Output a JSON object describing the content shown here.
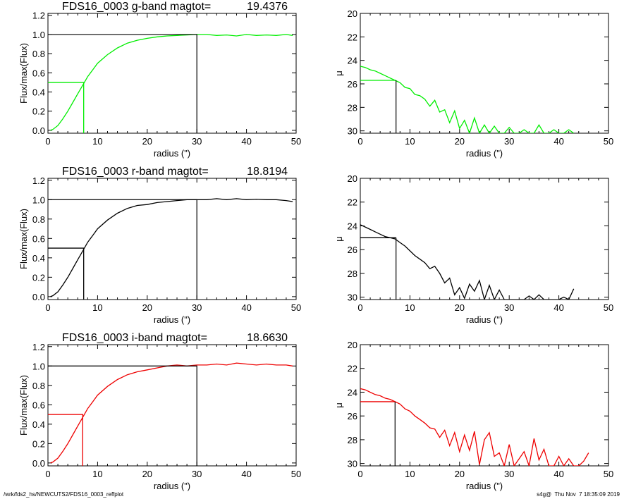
{
  "footer": {
    "path": "/wrk/fds2_hs/NEWCUTS2/FDS16_0003_reffplot",
    "stamp": "s4g@  Thu Nov  7 18:35:09 2019"
  },
  "colors": {
    "g": "#00ee00",
    "r": "#000000",
    "i": "#ee0000",
    "frame": "#000000"
  },
  "chart_data": [
    {
      "type": "line",
      "panel": "g-growth-curve",
      "title": "FDS16_0003 g-band  magtot=",
      "title_value": "19.4376",
      "xlabel": "radius (\")",
      "ylabel": "Flux/max(Flux)",
      "xlim": [
        0,
        50
      ],
      "ylim": [
        -0.03,
        1.22
      ],
      "xticks": [
        0,
        10,
        20,
        30,
        40,
        50
      ],
      "yticks": [
        0.0,
        0.2,
        0.4,
        0.6,
        0.8,
        1.0,
        1.2
      ],
      "ytick_labels": [
        "0.0",
        "0.2",
        "0.4",
        "0.6",
        "0.8",
        "1.0",
        "1.2"
      ],
      "series": [
        {
          "color": "#00ee00",
          "x": [
            0.5,
            1,
            2,
            3,
            4,
            5,
            6,
            7,
            8,
            9,
            10,
            12,
            14,
            16,
            18,
            20,
            22,
            24,
            26,
            28,
            30,
            32,
            34,
            36,
            38,
            40,
            42,
            44,
            46,
            48,
            49.3
          ],
          "y": [
            0.0,
            0.01,
            0.05,
            0.12,
            0.2,
            0.29,
            0.38,
            0.47,
            0.56,
            0.63,
            0.7,
            0.79,
            0.86,
            0.91,
            0.94,
            0.96,
            0.975,
            0.985,
            0.99,
            0.995,
            1.0,
            1.0,
            0.99,
            0.995,
            0.985,
            1.0,
            0.99,
            0.995,
            0.99,
            1.0,
            0.99
          ]
        }
      ],
      "half_light": {
        "r": 7.2,
        "f": 0.5
      },
      "total": {
        "r": 30.0,
        "f": 1.0
      }
    },
    {
      "type": "line",
      "panel": "g-surface-brightness",
      "xlabel": "radius (\")",
      "ylabel": "μ",
      "xlim": [
        0,
        50
      ],
      "ylim": [
        30.2,
        20
      ],
      "xticks": [
        0,
        10,
        20,
        30,
        40,
        50
      ],
      "yticks": [
        20,
        22,
        24,
        26,
        28,
        30
      ],
      "series": [
        {
          "color": "#00ee00",
          "x": [
            0,
            1,
            2,
            3,
            4,
            5,
            6,
            7,
            8,
            9,
            10,
            11,
            12,
            13,
            14,
            15,
            16,
            17,
            18,
            19,
            20,
            21,
            22,
            23,
            24,
            25,
            26,
            27,
            28,
            29,
            30,
            31,
            32,
            33,
            34,
            35,
            36,
            37,
            38,
            39,
            40,
            41,
            42,
            43
          ],
          "y": [
            24.5,
            24.6,
            24.8,
            24.9,
            25.1,
            25.3,
            25.5,
            25.7,
            25.9,
            26.3,
            26.4,
            26.9,
            27.0,
            27.3,
            27.9,
            27.4,
            28.4,
            28.2,
            29.3,
            28.3,
            29.8,
            29.1,
            30.2,
            28.9,
            30.2,
            29.5,
            30.2,
            29.6,
            30.2,
            30.2,
            29.7,
            30.2,
            30.2,
            29.9,
            30.2,
            30.2,
            29.5,
            30.2,
            30.2,
            29.9,
            30.2,
            30.2,
            29.9,
            30.2
          ]
        }
      ],
      "marker": {
        "r": 7.2,
        "mu": 25.7
      }
    },
    {
      "type": "line",
      "panel": "r-growth-curve",
      "title": "FDS16_0003 r-band  magtot=",
      "title_value": "18.8194",
      "xlabel": "radius (\")",
      "ylabel": "Flux/max(Flux)",
      "xlim": [
        0,
        50
      ],
      "ylim": [
        -0.03,
        1.22
      ],
      "xticks": [
        0,
        10,
        20,
        30,
        40,
        50
      ],
      "yticks": [
        0.0,
        0.2,
        0.4,
        0.6,
        0.8,
        1.0,
        1.2
      ],
      "ytick_labels": [
        "0.0",
        "0.2",
        "0.4",
        "0.6",
        "0.8",
        "1.0",
        "1.2"
      ],
      "series": [
        {
          "color": "#000000",
          "x": [
            0.5,
            1,
            2,
            3,
            4,
            5,
            6,
            7,
            8,
            9,
            10,
            12,
            14,
            16,
            18,
            20,
            22,
            24,
            26,
            28,
            30,
            32,
            34,
            36,
            38,
            40,
            42,
            44,
            46,
            48,
            49.3
          ],
          "y": [
            0.0,
            0.01,
            0.05,
            0.12,
            0.2,
            0.29,
            0.38,
            0.47,
            0.56,
            0.63,
            0.7,
            0.79,
            0.86,
            0.91,
            0.94,
            0.95,
            0.97,
            0.98,
            0.99,
            1.0,
            1.0,
            1.0,
            1.01,
            1.0,
            1.01,
            1.0,
            1.005,
            1.0,
            1.0,
            0.99,
            0.98
          ]
        }
      ],
      "half_light": {
        "r": 7.2,
        "f": 0.5
      },
      "total": {
        "r": 30.0,
        "f": 1.0
      }
    },
    {
      "type": "line",
      "panel": "r-surface-brightness",
      "xlabel": "radius (\")",
      "ylabel": "μ",
      "xlim": [
        0,
        50
      ],
      "ylim": [
        30.2,
        20
      ],
      "xticks": [
        0,
        10,
        20,
        30,
        40,
        50
      ],
      "yticks": [
        20,
        22,
        24,
        26,
        28,
        30
      ],
      "series": [
        {
          "color": "#000000",
          "x": [
            0,
            1,
            2,
            3,
            4,
            5,
            6,
            7,
            8,
            9,
            10,
            11,
            12,
            13,
            14,
            15,
            16,
            17,
            18,
            19,
            20,
            21,
            22,
            23,
            24,
            25,
            26,
            27,
            28,
            29,
            30,
            31,
            32,
            33,
            34,
            35,
            36,
            37,
            38,
            39,
            40,
            41,
            42,
            43
          ],
          "y": [
            23.9,
            24.1,
            24.3,
            24.5,
            24.7,
            24.9,
            25.0,
            25.1,
            25.4,
            25.7,
            26.1,
            26.5,
            26.8,
            27.1,
            27.6,
            27.4,
            28.0,
            28.8,
            28.4,
            29.8,
            29.2,
            30.1,
            28.9,
            29.5,
            28.6,
            30.2,
            29.0,
            30.2,
            29.4,
            30.2,
            30.2,
            30.2,
            30.2,
            30.2,
            29.9,
            30.2,
            29.8,
            30.2,
            30.2,
            30.2,
            30.2,
            30.0,
            30.2,
            29.3
          ]
        }
      ],
      "marker": {
        "r": 7.2,
        "mu": 25.0
      }
    },
    {
      "type": "line",
      "panel": "i-growth-curve",
      "title": "FDS16_0003 i-band  magtot=",
      "title_value": "18.6630",
      "xlabel": "radius (\")",
      "ylabel": "Flux/max(Flux)",
      "xlim": [
        0,
        50
      ],
      "ylim": [
        -0.03,
        1.22
      ],
      "xticks": [
        0,
        10,
        20,
        30,
        40,
        50
      ],
      "yticks": [
        0.0,
        0.2,
        0.4,
        0.6,
        0.8,
        1.0,
        1.2
      ],
      "ytick_labels": [
        "0.0",
        "0.2",
        "0.4",
        "0.6",
        "0.8",
        "1.0",
        "1.2"
      ],
      "series": [
        {
          "color": "#ee0000",
          "x": [
            0.5,
            1,
            2,
            3,
            4,
            5,
            6,
            7,
            8,
            9,
            10,
            12,
            14,
            16,
            18,
            20,
            22,
            24,
            26,
            28,
            30,
            32,
            34,
            36,
            38,
            40,
            42,
            44,
            46,
            48,
            49.3
          ],
          "y": [
            0.0,
            0.01,
            0.05,
            0.12,
            0.2,
            0.29,
            0.38,
            0.47,
            0.56,
            0.63,
            0.7,
            0.79,
            0.86,
            0.91,
            0.94,
            0.96,
            0.98,
            1.0,
            1.01,
            1.0,
            1.01,
            1.01,
            1.02,
            1.01,
            1.03,
            1.02,
            1.01,
            1.02,
            1.01,
            1.01,
            1.0
          ]
        }
      ],
      "half_light": {
        "r": 7.0,
        "f": 0.5
      },
      "total": {
        "r": 30.0,
        "f": 1.0
      }
    },
    {
      "type": "line",
      "panel": "i-surface-brightness",
      "xlabel": "radius (\")",
      "ylabel": "μ",
      "xlim": [
        0,
        50
      ],
      "ylim": [
        30.2,
        20
      ],
      "xticks": [
        0,
        10,
        20,
        30,
        40,
        50
      ],
      "yticks": [
        20,
        22,
        24,
        26,
        28,
        30
      ],
      "series": [
        {
          "color": "#ee0000",
          "x": [
            0,
            1,
            2,
            3,
            4,
            5,
            6,
            7,
            8,
            9,
            10,
            11,
            12,
            13,
            14,
            15,
            16,
            17,
            18,
            19,
            20,
            21,
            22,
            23,
            24,
            25,
            26,
            27,
            28,
            29,
            30,
            31,
            32,
            33,
            34,
            35,
            36,
            37,
            38,
            39,
            40,
            41,
            42,
            43,
            44,
            45,
            46
          ],
          "y": [
            23.7,
            23.8,
            24.0,
            24.2,
            24.3,
            24.5,
            24.6,
            24.8,
            25.0,
            25.4,
            25.6,
            26.0,
            26.3,
            26.6,
            27.0,
            27.1,
            27.8,
            27.2,
            28.5,
            27.4,
            29.0,
            27.6,
            28.9,
            27.3,
            30.1,
            28.0,
            27.4,
            29.4,
            29.1,
            30.2,
            28.4,
            30.2,
            29.6,
            29.0,
            30.2,
            27.9,
            29.7,
            28.8,
            30.2,
            30.2,
            29.4,
            30.2,
            29.6,
            30.2,
            30.2,
            29.8,
            29.1
          ]
        }
      ],
      "marker": {
        "r": 7.0,
        "mu": 24.8
      }
    }
  ]
}
